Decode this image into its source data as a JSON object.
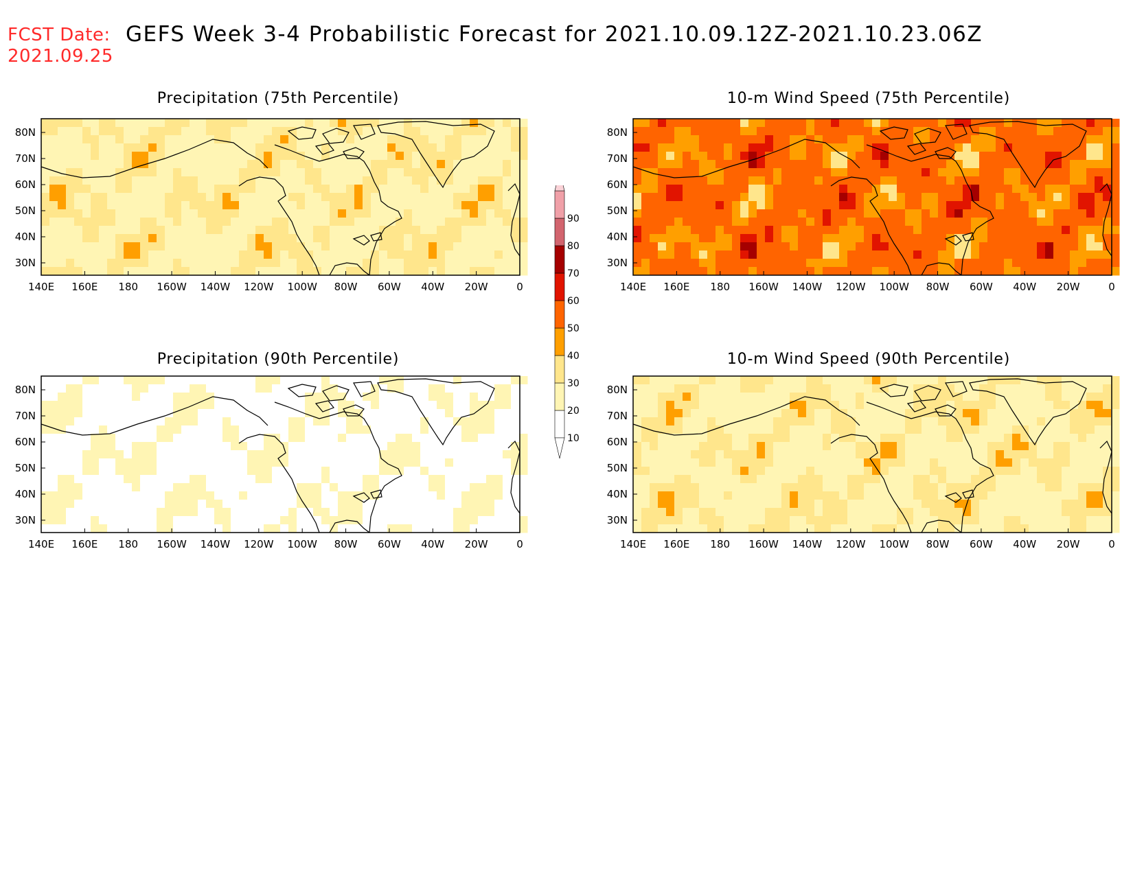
{
  "header": {
    "fcst_label": "FCST Date:",
    "fcst_date": "2021.09.25",
    "title": "GEFS Week 3-4 Probabilistic Forecast for 2021.10.09.12Z-2021.10.23.06Z"
  },
  "axes": {
    "lat_labels": [
      "80N",
      "70N",
      "60N",
      "50N",
      "40N",
      "30N"
    ],
    "lon_labels": [
      "140E",
      "160E",
      "180",
      "160W",
      "140W",
      "120W",
      "100W",
      "80W",
      "60W",
      "40W",
      "20W",
      "0"
    ]
  },
  "panels": [
    {
      "title": "Precipitation (75th Percentile)",
      "level": "low"
    },
    {
      "title": "10-m Wind Speed (75th Percentile)",
      "level": "high"
    },
    {
      "title": "Precipitation (90th Percentile)",
      "level": "minimal"
    },
    {
      "title": "10-m Wind Speed (90th Percentile)",
      "level": "low"
    }
  ],
  "colorbar": {
    "levels": [
      "10",
      "20",
      "30",
      "40",
      "50",
      "60",
      "70",
      "80",
      "90"
    ],
    "colors": [
      "#ffffff",
      "#fff5b4",
      "#ffe68c",
      "#ff9f00",
      "#ff6400",
      "#e11400",
      "#a50000",
      "#d2646e",
      "#f0a0a8",
      "#fad2d7"
    ]
  },
  "chart_data": [
    {
      "type": "heatmap",
      "title": "Precipitation (75th Percentile)",
      "xlim": [
        "140E",
        "0"
      ],
      "ylim": [
        "25N",
        "85N"
      ],
      "dominant_bin": "20-30",
      "peak_bin": "30-40"
    },
    {
      "type": "heatmap",
      "title": "10-m Wind Speed (75th Percentile)",
      "xlim": [
        "140E",
        "0"
      ],
      "ylim": [
        "25N",
        "85N"
      ],
      "dominant_bin": "40-50",
      "peak_bin": "60-70"
    },
    {
      "type": "heatmap",
      "title": "Precipitation (90th Percentile)",
      "xlim": [
        "140E",
        "0"
      ],
      "ylim": [
        "25N",
        "85N"
      ],
      "dominant_bin": "10-20",
      "peak_bin": "20-30"
    },
    {
      "type": "heatmap",
      "title": "10-m Wind Speed (90th Percentile)",
      "xlim": [
        "140E",
        "0"
      ],
      "ylim": [
        "25N",
        "85N"
      ],
      "dominant_bin": "20-30",
      "peak_bin": "50-60"
    }
  ]
}
